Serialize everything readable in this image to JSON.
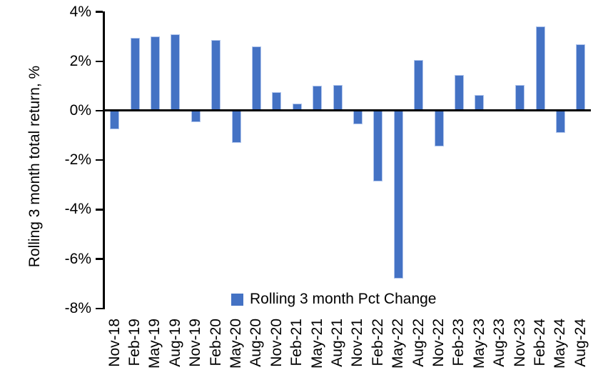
{
  "figure": {
    "background": "#ffffff",
    "bar_color": "#4472C4",
    "bar_edge_color": "#b0c5ec",
    "axis_color": "#000000",
    "text_color": "#000000"
  },
  "chart_data": {
    "type": "bar",
    "title": "",
    "xlabel": "",
    "ylabel": "Rolling 3 month total return, %",
    "legend_label": "Rolling 3 month Pct Change",
    "legend_position": "bottom-center",
    "grid": false,
    "ylim": [
      -8,
      4
    ],
    "yticks": [
      {
        "value": 4,
        "label": "4%"
      },
      {
        "value": 2,
        "label": "2%"
      },
      {
        "value": 0,
        "label": "0%"
      },
      {
        "value": -2,
        "label": "-2%"
      },
      {
        "value": -4,
        "label": "-4%"
      },
      {
        "value": -6,
        "label": "-6%"
      },
      {
        "value": -8,
        "label": "-8%"
      }
    ],
    "categories": [
      "Nov-18",
      "Feb-19",
      "May-19",
      "Aug-19",
      "Nov-19",
      "Feb-20",
      "May-20",
      "Aug-20",
      "Nov-20",
      "Feb-21",
      "May-21",
      "Aug-21",
      "Nov-21",
      "Feb-22",
      "May-22",
      "Aug-22",
      "Nov-22",
      "Feb-23",
      "May-23",
      "Aug-23",
      "Nov-23",
      "Feb-24",
      "May-24",
      "Aug-24"
    ],
    "series": [
      {
        "name": "Rolling 3 month Pct Change",
        "values": [
          -0.75,
          2.95,
          3.0,
          3.1,
          -0.45,
          2.85,
          -1.3,
          2.6,
          0.75,
          0.3,
          1.0,
          1.05,
          -0.55,
          -2.85,
          -6.8,
          2.05,
          -1.45,
          1.45,
          0.65,
          0.0,
          1.05,
          3.4,
          -0.9,
          2.7
        ]
      }
    ]
  }
}
